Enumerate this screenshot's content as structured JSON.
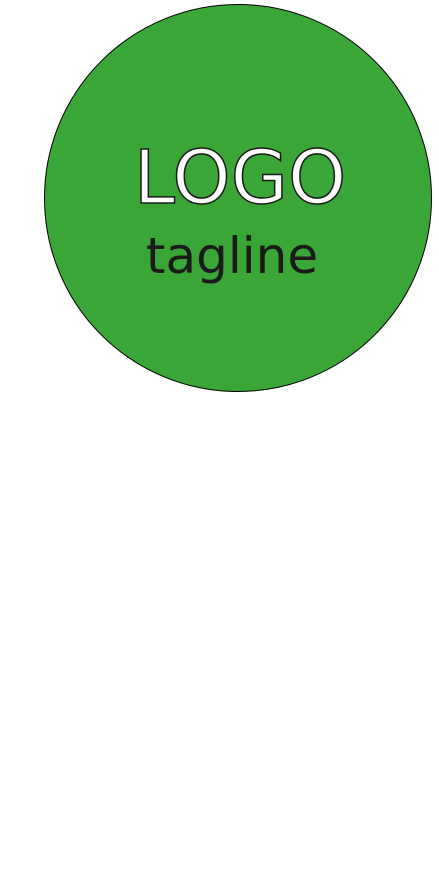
{
  "logo": {
    "text": "LOGO",
    "tagline": "tagline",
    "colors": {
      "circle_fill": "#3aa637",
      "circle_outline": "#000000",
      "logo_text": "#ffffff",
      "tagline_text": "#1a1a1a"
    }
  }
}
